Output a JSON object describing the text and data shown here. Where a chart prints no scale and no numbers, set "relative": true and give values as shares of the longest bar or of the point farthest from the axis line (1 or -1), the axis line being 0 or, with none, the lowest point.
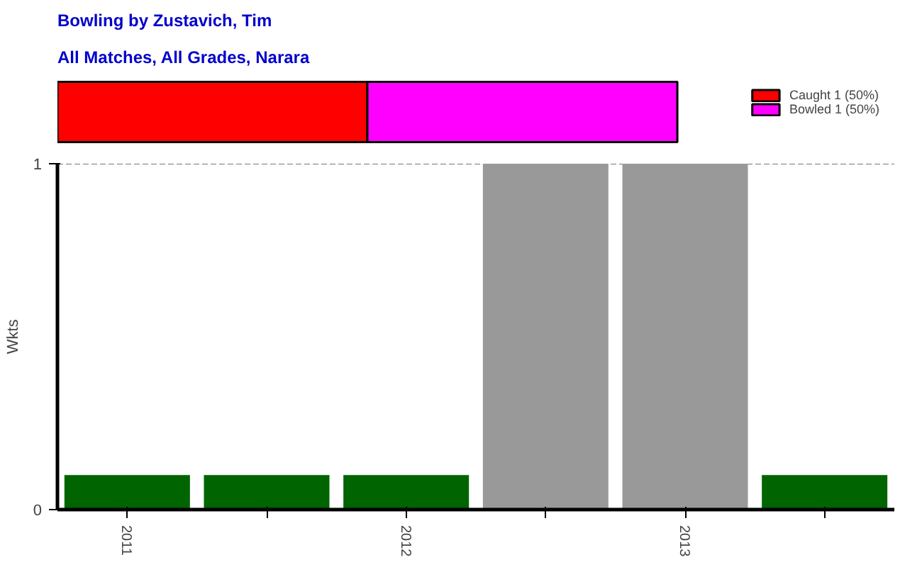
{
  "chart_data": [
    {
      "type": "bar",
      "title": "Bowling by Zustavich, Tim",
      "subtitle": "All Matches, All Grades, Narara",
      "orientation": "horizontal",
      "stacked": true,
      "relative": true,
      "categories": [
        null
      ],
      "legend": "top right",
      "series": [
        {
          "name": "Caught 1 (50%)",
          "color": "#ff0000",
          "values": [
            0.5
          ]
        },
        {
          "name": "Bowled 1 (50%)",
          "color": "#ff00ff",
          "values": [
            0.5
          ]
        }
      ]
    },
    {
      "type": "bar",
      "ylabel": "Wkts",
      "categories": [
        "2011",
        null,
        "2012",
        null,
        "2013",
        null
      ],
      "ylim": [
        0,
        1
      ],
      "yticks": [
        0,
        1
      ],
      "ref_lines": [
        {
          "axis": "y",
          "value": 1,
          "color": "#777777",
          "line_style": "dashed"
        }
      ],
      "values": [
        0.1,
        0.1,
        0.1,
        1,
        1,
        0.1
      ],
      "colors": [
        "#006400",
        "#006400",
        "#006400",
        "#999999",
        "#999999",
        "#006400"
      ]
    }
  ]
}
